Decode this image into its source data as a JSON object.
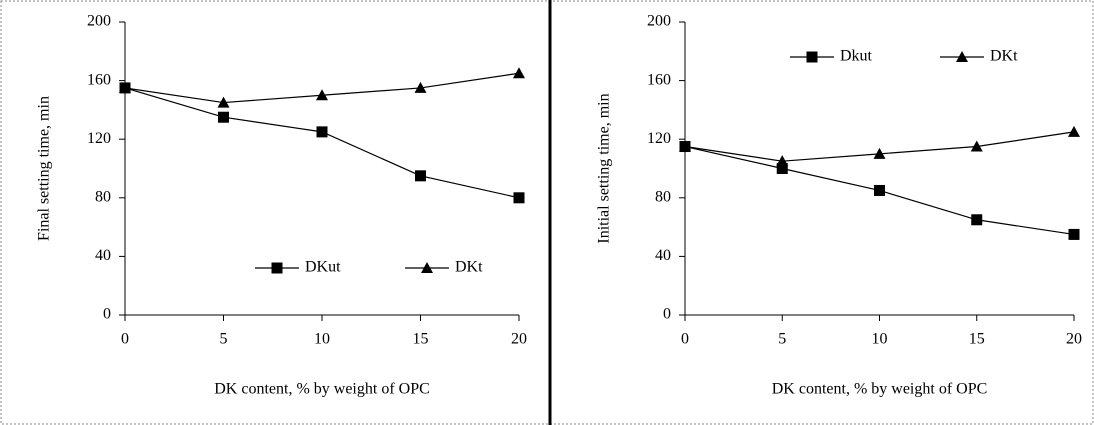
{
  "chart_data": [
    {
      "type": "line",
      "y_label": "Final setting time, min",
      "x_label": "DK content, % by weight of OPC",
      "x": [
        0,
        5,
        10,
        15,
        20
      ],
      "xlim": [
        0,
        20
      ],
      "xticks": [
        0,
        5,
        10,
        15,
        20
      ],
      "ylim": [
        0,
        200
      ],
      "yticks": [
        0,
        40,
        80,
        120,
        160,
        200
      ],
      "legend": "lower right",
      "series": [
        {
          "name": "DKut",
          "color": "#000000",
          "marker": "square",
          "values": [
            155,
            135,
            125,
            95,
            80
          ]
        },
        {
          "name": "DKt",
          "color": "#000000",
          "marker": "triangle",
          "values": [
            155,
            145,
            150,
            155,
            165
          ]
        }
      ]
    },
    {
      "type": "line",
      "y_label": "Initial setting time, min",
      "x_label": "DK content, % by weight of OPC",
      "x": [
        0,
        5,
        10,
        15,
        20
      ],
      "xlim": [
        0,
        20
      ],
      "xticks": [
        0,
        5,
        10,
        15,
        20
      ],
      "ylim": [
        0,
        200
      ],
      "yticks": [
        0,
        40,
        80,
        120,
        160,
        200
      ],
      "legend": "upper right",
      "series": [
        {
          "name": "Dkut",
          "color": "#000000",
          "marker": "square",
          "values": [
            115,
            100,
            85,
            65,
            55
          ]
        },
        {
          "name": "DKt",
          "color": "#000000",
          "marker": "triangle",
          "values": [
            115,
            105,
            110,
            115,
            125
          ]
        }
      ]
    }
  ]
}
